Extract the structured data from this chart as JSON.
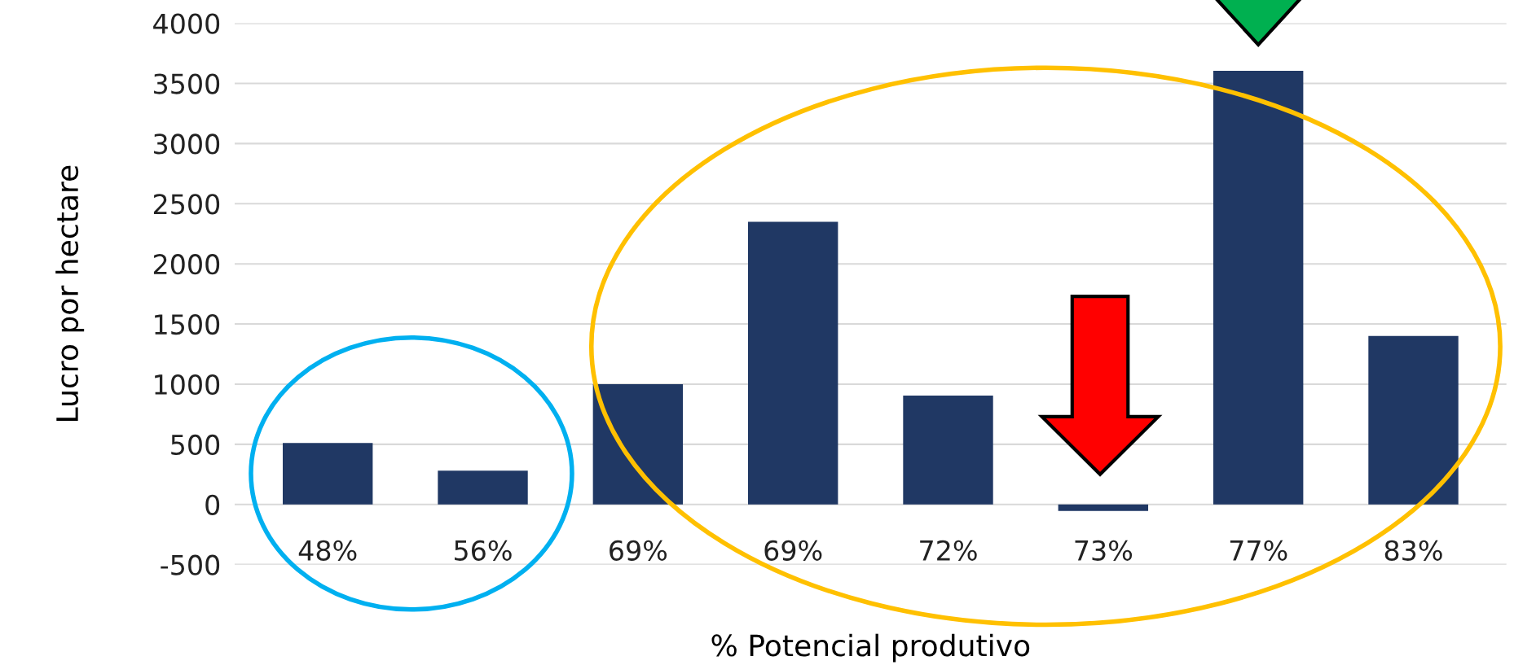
{
  "chart_data": {
    "type": "bar",
    "xlabel": "% Potencial produtivo",
    "ylabel": "Lucro por hectare",
    "categories": [
      "48%",
      "56%",
      "69%",
      "69%",
      "72%",
      "73%",
      "77%",
      "83%"
    ],
    "values": [
      510,
      280,
      1000,
      2350,
      905,
      -55,
      3605,
      1400
    ],
    "color": "#203864",
    "ylim": [
      -500,
      4000
    ],
    "yticks": [
      -500,
      0,
      500,
      1000,
      1500,
      2000,
      2500,
      3000,
      3500,
      4000
    ],
    "grid": "y"
  }
}
